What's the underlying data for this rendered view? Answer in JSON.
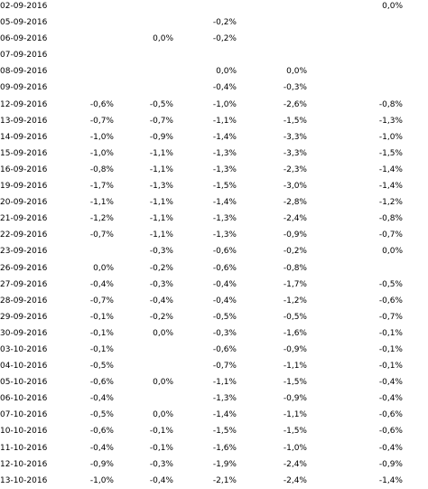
{
  "rows": [
    {
      "date": "02-09-2016",
      "c1": "",
      "c2": "",
      "c3": "",
      "c4": "",
      "c5": "0,0%"
    },
    {
      "date": "05-09-2016",
      "c1": "",
      "c2": "",
      "c3": "-0,2%",
      "c4": "",
      "c5": ""
    },
    {
      "date": "06-09-2016",
      "c1": "",
      "c2": "0,0%",
      "c3": "-0,2%",
      "c4": "",
      "c5": ""
    },
    {
      "date": "07-09-2016",
      "c1": "",
      "c2": "",
      "c3": "",
      "c4": "",
      "c5": ""
    },
    {
      "date": "08-09-2016",
      "c1": "",
      "c2": "",
      "c3": "0,0%",
      "c4": "0,0%",
      "c5": ""
    },
    {
      "date": "09-09-2016",
      "c1": "",
      "c2": "",
      "c3": "-0,4%",
      "c4": "-0,3%",
      "c5": ""
    },
    {
      "date": "12-09-2016",
      "c1": "-0,6%",
      "c2": "-0,5%",
      "c3": "-1,0%",
      "c4": "-2,6%",
      "c5": "-0,8%"
    },
    {
      "date": "13-09-2016",
      "c1": "-0,7%",
      "c2": "-0,7%",
      "c3": "-1,1%",
      "c4": "-1,5%",
      "c5": "-1,3%"
    },
    {
      "date": "14-09-2016",
      "c1": "-1,0%",
      "c2": "-0,9%",
      "c3": "-1,4%",
      "c4": "-3,3%",
      "c5": "-1,0%"
    },
    {
      "date": "15-09-2016",
      "c1": "-1,0%",
      "c2": "-1,1%",
      "c3": "-1,3%",
      "c4": "-3,3%",
      "c5": "-1,5%"
    },
    {
      "date": "16-09-2016",
      "c1": "-0,8%",
      "c2": "-1,1%",
      "c3": "-1,3%",
      "c4": "-2,3%",
      "c5": "-1,4%"
    },
    {
      "date": "19-09-2016",
      "c1": "-1,7%",
      "c2": "-1,3%",
      "c3": "-1,5%",
      "c4": "-3,0%",
      "c5": "-1,4%"
    },
    {
      "date": "20-09-2016",
      "c1": "-1,1%",
      "c2": "-1,1%",
      "c3": "-1,4%",
      "c4": "-2,8%",
      "c5": "-1,2%"
    },
    {
      "date": "21-09-2016",
      "c1": "-1,2%",
      "c2": "-1,1%",
      "c3": "-1,3%",
      "c4": "-2,4%",
      "c5": "-0,8%"
    },
    {
      "date": "22-09-2016",
      "c1": "-0,7%",
      "c2": "-1,1%",
      "c3": "-1,3%",
      "c4": "-0,9%",
      "c5": "-0,7%"
    },
    {
      "date": "23-09-2016",
      "c1": "",
      "c2": "-0,3%",
      "c3": "-0,6%",
      "c4": "-0,2%",
      "c5": "0,0%"
    },
    {
      "date": "26-09-2016",
      "c1": "0,0%",
      "c2": "-0,2%",
      "c3": "-0,6%",
      "c4": "-0,8%",
      "c5": ""
    },
    {
      "date": "27-09-2016",
      "c1": "-0,4%",
      "c2": "-0,3%",
      "c3": "-0,4%",
      "c4": "-1,7%",
      "c5": "-0,5%"
    },
    {
      "date": "28-09-2016",
      "c1": "-0,7%",
      "c2": "-0,4%",
      "c3": "-0,4%",
      "c4": "-1,2%",
      "c5": "-0,6%"
    },
    {
      "date": "29-09-2016",
      "c1": "-0,1%",
      "c2": "-0,2%",
      "c3": "-0,5%",
      "c4": "-0,5%",
      "c5": "-0,7%"
    },
    {
      "date": "30-09-2016",
      "c1": "-0,1%",
      "c2": "0,0%",
      "c3": "-0,3%",
      "c4": "-1,6%",
      "c5": "-0,1%"
    },
    {
      "date": "03-10-2016",
      "c1": "-0,1%",
      "c2": "",
      "c3": "-0,6%",
      "c4": "-0,9%",
      "c5": "-0,1%"
    },
    {
      "date": "04-10-2016",
      "c1": "-0,5%",
      "c2": "",
      "c3": "-0,7%",
      "c4": "-1,1%",
      "c5": "-0,1%"
    },
    {
      "date": "05-10-2016",
      "c1": "-0,6%",
      "c2": "0,0%",
      "c3": "-1,1%",
      "c4": "-1,5%",
      "c5": "-0,4%"
    },
    {
      "date": "06-10-2016",
      "c1": "-0,4%",
      "c2": "",
      "c3": "-1,3%",
      "c4": "-0,9%",
      "c5": "-0,4%"
    },
    {
      "date": "07-10-2016",
      "c1": "-0,5%",
      "c2": "0,0%",
      "c3": "-1,4%",
      "c4": "-1,1%",
      "c5": "-0,6%"
    },
    {
      "date": "10-10-2016",
      "c1": "-0,6%",
      "c2": "-0,1%",
      "c3": "-1,5%",
      "c4": "-1,5%",
      "c5": "-0,6%"
    },
    {
      "date": "11-10-2016",
      "c1": "-0,4%",
      "c2": "-0,1%",
      "c3": "-1,6%",
      "c4": "-1,0%",
      "c5": "-0,4%"
    },
    {
      "date": "12-10-2016",
      "c1": "-0,9%",
      "c2": "-0,3%",
      "c3": "-1,9%",
      "c4": "-2,4%",
      "c5": "-0,9%"
    },
    {
      "date": "13-10-2016",
      "c1": "-1,0%",
      "c2": "-0,4%",
      "c3": "-2,1%",
      "c4": "-2,4%",
      "c5": "-1,4%"
    }
  ]
}
